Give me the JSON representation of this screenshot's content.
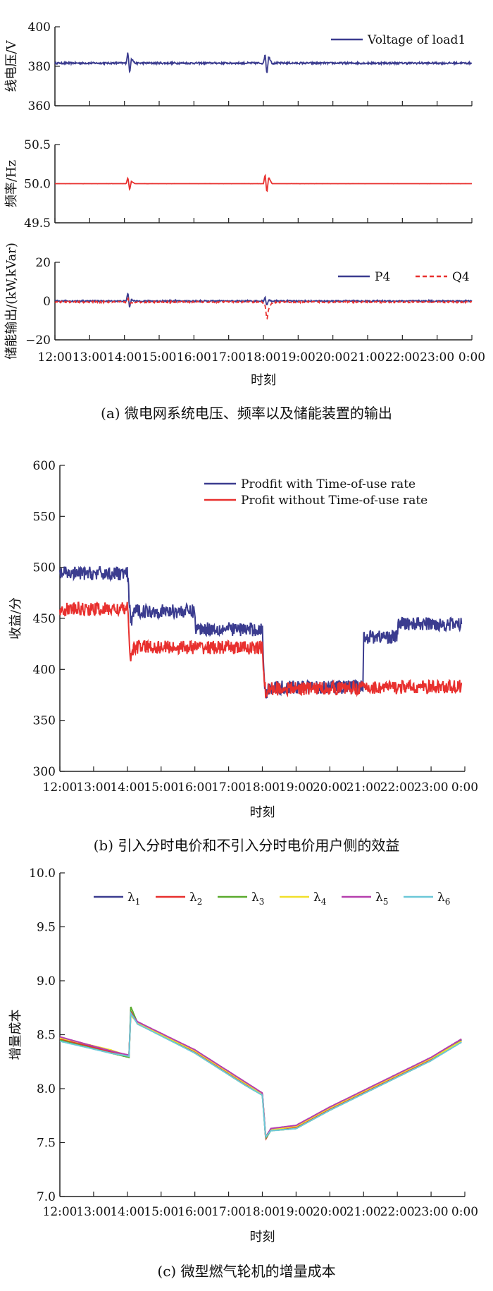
{
  "chart_data": [
    {
      "type": "line",
      "ylabel": "线电压/V",
      "ylim": [
        360,
        400
      ],
      "yticks": [
        "400",
        "380",
        "360"
      ],
      "x_ticks": [
        "12:00",
        "13:00",
        "14:00",
        "15:00",
        "16:00",
        "17:00",
        "18:00",
        "19:00",
        "20:00",
        "21:00",
        "22:00",
        "23:00",
        "0:00"
      ],
      "legend_position": "top-right",
      "series": [
        {
          "name": "Voltage of load1",
          "color": "#3b3c8f",
          "dash": false,
          "points": [
            [
              0,
              381.6
            ],
            [
              2.05,
              381.6
            ],
            [
              2.1,
              387.5
            ],
            [
              2.15,
              376.5
            ],
            [
              2.2,
              384
            ],
            [
              2.3,
              381.6
            ],
            [
              6.0,
              381.6
            ],
            [
              6.05,
              386.5
            ],
            [
              6.1,
              375.8
            ],
            [
              6.15,
              385
            ],
            [
              6.25,
              381.6
            ],
            [
              12,
              381.6
            ]
          ]
        }
      ]
    },
    {
      "type": "line",
      "ylabel": "频率/Hz",
      "ylim": [
        49.5,
        50.5
      ],
      "yticks": [
        "50.5",
        "50.0",
        "49.5"
      ],
      "series": [
        {
          "name": "",
          "color": "#e8302e",
          "dash": false,
          "points": [
            [
              0,
              50.0
            ],
            [
              2.05,
              50.0
            ],
            [
              2.1,
              50.08
            ],
            [
              2.15,
              49.92
            ],
            [
              2.2,
              50.03
            ],
            [
              2.3,
              50.0
            ],
            [
              6.0,
              50.0
            ],
            [
              6.05,
              50.12
            ],
            [
              6.1,
              49.88
            ],
            [
              6.15,
              50.08
            ],
            [
              6.25,
              50.0
            ],
            [
              12,
              50.0
            ]
          ]
        }
      ]
    },
    {
      "type": "line",
      "ylabel": "储能输出/(kW,kVar)",
      "ylim": [
        -20,
        20
      ],
      "yticks": [
        "20",
        "0",
        "−20"
      ],
      "xlabel": "时刻",
      "legend_position": "top-right",
      "series": [
        {
          "name": "P4",
          "color": "#3b3c8f",
          "dash": false,
          "points": [
            [
              0,
              0
            ],
            [
              2.05,
              0
            ],
            [
              2.1,
              4.5
            ],
            [
              2.15,
              -3.5
            ],
            [
              2.2,
              1
            ],
            [
              2.3,
              0
            ],
            [
              6.0,
              0
            ],
            [
              6.05,
              2
            ],
            [
              6.1,
              -2.5
            ],
            [
              6.15,
              0.5
            ],
            [
              6.25,
              0
            ],
            [
              12,
              0
            ]
          ]
        },
        {
          "name": "Q4",
          "color": "#e8302e",
          "dash": true,
          "points": [
            [
              0,
              -0.5
            ],
            [
              2.05,
              -0.5
            ],
            [
              2.1,
              1.5
            ],
            [
              2.15,
              -1.5
            ],
            [
              2.25,
              -0.5
            ],
            [
              5.95,
              -0.5
            ],
            [
              6.05,
              -2
            ],
            [
              6.1,
              -10
            ],
            [
              6.15,
              -4
            ],
            [
              6.25,
              -1
            ],
            [
              6.4,
              -0.5
            ],
            [
              12,
              -0.5
            ]
          ]
        }
      ]
    },
    {
      "type": "line",
      "ylabel": "收益/分",
      "ylim": [
        300,
        600
      ],
      "yticks": [
        "600",
        "550",
        "500",
        "450",
        "400",
        "350",
        "300"
      ],
      "x_ticks": [
        "12:00",
        "13:00",
        "14:00",
        "15:00",
        "16:00",
        "17:00",
        "18:00",
        "19:00",
        "20:00",
        "21:00",
        "22:00",
        "23:00",
        "0:00"
      ],
      "xlabel": "时刻",
      "legend_position": "top-right",
      "series": [
        {
          "name": "Prodfit with Time-of-use rate",
          "color": "#3b3c8f",
          "dash": false,
          "points": [
            [
              0,
              494
            ],
            [
              1.98,
              494
            ],
            [
              2.0,
              494
            ],
            [
              2.05,
              470
            ],
            [
              2.1,
              445
            ],
            [
              2.2,
              458
            ],
            [
              2.3,
              457
            ],
            [
              4.0,
              457
            ],
            [
              4.02,
              440
            ],
            [
              6.0,
              439
            ],
            [
              6.05,
              395
            ],
            [
              6.1,
              375
            ],
            [
              6.2,
              382
            ],
            [
              8.95,
              383
            ],
            [
              8.98,
              383
            ],
            [
              9.0,
              432
            ],
            [
              10.0,
              432
            ],
            [
              10.02,
              445
            ],
            [
              11.9,
              444
            ]
          ]
        },
        {
          "name": "Profit without Time-of-use rate",
          "color": "#e8302e",
          "dash": false,
          "points": [
            [
              0,
              459
            ],
            [
              1.98,
              459
            ],
            [
              2.0,
              460
            ],
            [
              2.05,
              435
            ],
            [
              2.1,
              410
            ],
            [
              2.2,
              422
            ],
            [
              2.3,
              422
            ],
            [
              6.0,
              421
            ],
            [
              6.05,
              395
            ],
            [
              6.1,
              374
            ],
            [
              6.2,
              381
            ],
            [
              11.9,
              383
            ]
          ]
        }
      ]
    },
    {
      "type": "line",
      "ylabel": "增量成本",
      "ylim": [
        7.0,
        10.0
      ],
      "yticks": [
        "10.0",
        "9.5",
        "9.0",
        "8.5",
        "8.0",
        "7.5",
        "7.0"
      ],
      "x_ticks": [
        "12:00",
        "13:00",
        "14:00",
        "15:00",
        "16:00",
        "17:00",
        "18:00",
        "19:00",
        "20:00",
        "21:00",
        "22:00",
        "23:00",
        "0:00"
      ],
      "xlabel": "时刻",
      "legend_position": "top",
      "series": [
        {
          "name": "λ1",
          "base": "λ",
          "sub": "1",
          "color": "#3b3c8f",
          "dash": false,
          "points": [
            [
              0,
              8.47
            ],
            [
              1.5,
              8.35
            ],
            [
              2.05,
              8.3
            ],
            [
              2.1,
              8.7
            ],
            [
              2.3,
              8.62
            ],
            [
              4,
              8.35
            ],
            [
              5.5,
              8.05
            ],
            [
              6.0,
              7.95
            ],
            [
              6.05,
              7.75
            ],
            [
              6.1,
              7.55
            ],
            [
              6.25,
              7.62
            ],
            [
              7,
              7.65
            ],
            [
              8,
              7.82
            ],
            [
              9.5,
              8.05
            ],
            [
              11,
              8.28
            ],
            [
              11.9,
              8.45
            ]
          ]
        },
        {
          "name": "λ2",
          "base": "λ",
          "sub": "2",
          "color": "#e8302e",
          "dash": false,
          "points": [
            [
              0,
              8.46
            ],
            [
              1.5,
              8.34
            ],
            [
              2.05,
              8.31
            ],
            [
              2.1,
              8.72
            ],
            [
              2.3,
              8.6
            ],
            [
              4,
              8.34
            ],
            [
              5.5,
              8.04
            ],
            [
              6.0,
              7.96
            ],
            [
              6.05,
              7.76
            ],
            [
              6.1,
              7.53
            ],
            [
              6.25,
              7.62
            ],
            [
              7,
              7.64
            ],
            [
              8,
              7.81
            ],
            [
              9.5,
              8.04
            ],
            [
              11,
              8.27
            ],
            [
              11.9,
              8.44
            ]
          ]
        },
        {
          "name": "λ3",
          "base": "λ",
          "sub": "3",
          "color": "#5aab2e",
          "dash": false,
          "points": [
            [
              0,
              8.45
            ],
            [
              1.5,
              8.33
            ],
            [
              2.05,
              8.29
            ],
            [
              2.1,
              8.76
            ],
            [
              2.3,
              8.61
            ],
            [
              4,
              8.33
            ],
            [
              5.5,
              8.03
            ],
            [
              6.0,
              7.94
            ],
            [
              6.05,
              7.74
            ],
            [
              6.1,
              7.54
            ],
            [
              6.25,
              7.61
            ],
            [
              7,
              7.63
            ],
            [
              8,
              7.8
            ],
            [
              9.5,
              8.03
            ],
            [
              11,
              8.26
            ],
            [
              11.9,
              8.46
            ]
          ]
        },
        {
          "name": "λ4",
          "base": "λ",
          "sub": "4",
          "color": "#f1e02a",
          "dash": false,
          "points": [
            [
              0,
              8.47
            ],
            [
              1.5,
              8.36
            ],
            [
              2.05,
              8.3
            ],
            [
              2.1,
              8.68
            ],
            [
              2.3,
              8.61
            ],
            [
              4,
              8.35
            ],
            [
              5.5,
              8.05
            ],
            [
              6.0,
              7.95
            ],
            [
              6.05,
              7.74
            ],
            [
              6.1,
              7.56
            ],
            [
              6.25,
              7.62
            ],
            [
              7,
              7.65
            ],
            [
              8,
              7.82
            ],
            [
              9.5,
              8.05
            ],
            [
              11,
              8.28
            ],
            [
              11.9,
              8.44
            ]
          ]
        },
        {
          "name": "λ5",
          "base": "λ",
          "sub": "5",
          "color": "#b63fae",
          "dash": false,
          "points": [
            [
              0,
              8.48
            ],
            [
              1.5,
              8.35
            ],
            [
              2.05,
              8.31
            ],
            [
              2.1,
              8.7
            ],
            [
              2.3,
              8.62
            ],
            [
              4,
              8.36
            ],
            [
              5.5,
              8.06
            ],
            [
              6.0,
              7.96
            ],
            [
              6.05,
              7.75
            ],
            [
              6.1,
              7.55
            ],
            [
              6.25,
              7.63
            ],
            [
              7,
              7.66
            ],
            [
              8,
              7.83
            ],
            [
              9.5,
              8.06
            ],
            [
              11,
              8.29
            ],
            [
              11.9,
              8.46
            ]
          ]
        },
        {
          "name": "λ6",
          "base": "λ",
          "sub": "6",
          "color": "#6cc8d8",
          "dash": false,
          "points": [
            [
              0,
              8.44
            ],
            [
              1.5,
              8.33
            ],
            [
              2.05,
              8.3
            ],
            [
              2.1,
              8.7
            ],
            [
              2.3,
              8.6
            ],
            [
              4,
              8.33
            ],
            [
              5.5,
              8.03
            ],
            [
              6.0,
              7.94
            ],
            [
              6.05,
              7.73
            ],
            [
              6.1,
              7.55
            ],
            [
              6.25,
              7.61
            ],
            [
              7,
              7.63
            ],
            [
              8,
              7.8
            ],
            [
              9.5,
              8.03
            ],
            [
              11,
              8.26
            ],
            [
              11.9,
              8.43
            ]
          ]
        }
      ]
    }
  ],
  "captions": {
    "a": "(a) 微电网系统电压、频率以及储能装置的输出",
    "b": "(b) 引入分时电价和不引入分时电价用户侧的效益",
    "c": "(c) 微型燃气轮机的增量成本"
  }
}
